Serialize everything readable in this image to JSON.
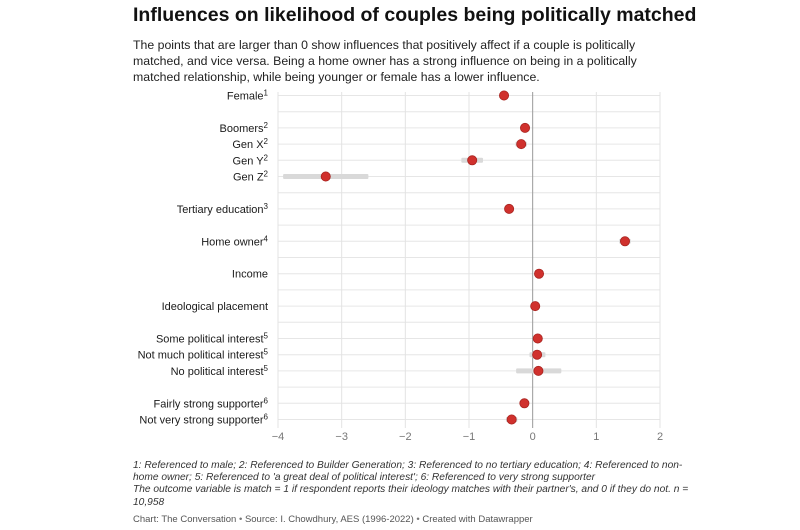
{
  "title": "Influences on likelihood of couples being politically matched",
  "subtitle": "The points that are larger than 0 show influences that positively affect if a couple is politically matched, and vice versa. Being a home owner has a strong influence on being in a politically matched relationship, while being younger or female has a lower influence.",
  "chart_data": {
    "type": "scatter",
    "orientation": "horizontal dot plot with confidence interval bars",
    "xlim": [
      -4,
      2
    ],
    "xticks": [
      -4,
      -3,
      -2,
      -1,
      0,
      1,
      2
    ],
    "xtick_labels": [
      "−4",
      "−3",
      "−2",
      "−1",
      "0",
      "1",
      "2"
    ],
    "grid": true,
    "point_color": "#d0312d",
    "ci_color": "#d9d9d9",
    "rows": [
      {
        "label": "Female",
        "sup": "1",
        "value": -0.45,
        "ci": [
          -0.52,
          -0.38
        ]
      },
      {
        "label": "",
        "sup": "",
        "value": null,
        "ci": null
      },
      {
        "label": "Boomers",
        "sup": "2",
        "value": -0.12,
        "ci": [
          -0.18,
          -0.06
        ]
      },
      {
        "label": "Gen X",
        "sup": "2",
        "value": -0.18,
        "ci": [
          -0.27,
          -0.09
        ]
      },
      {
        "label": "Gen Y",
        "sup": "2",
        "value": -0.95,
        "ci": [
          -1.12,
          -0.78
        ]
      },
      {
        "label": "Gen Z",
        "sup": "2",
        "value": -3.25,
        "ci": [
          -3.92,
          -2.58
        ]
      },
      {
        "label": "",
        "sup": "",
        "value": null,
        "ci": null
      },
      {
        "label": "Tertiary education",
        "sup": "3",
        "value": -0.37,
        "ci": [
          -0.44,
          -0.3
        ]
      },
      {
        "label": "",
        "sup": "",
        "value": null,
        "ci": null
      },
      {
        "label": "Home owner",
        "sup": "4",
        "value": 1.45,
        "ci": [
          1.36,
          1.54
        ]
      },
      {
        "label": "",
        "sup": "",
        "value": null,
        "ci": null
      },
      {
        "label": "Income",
        "sup": "",
        "value": 0.1,
        "ci": [
          0.08,
          0.12
        ]
      },
      {
        "label": "",
        "sup": "",
        "value": null,
        "ci": null
      },
      {
        "label": "Ideological placement",
        "sup": "",
        "value": 0.04,
        "ci": [
          0.02,
          0.06
        ]
      },
      {
        "label": "",
        "sup": "",
        "value": null,
        "ci": null
      },
      {
        "label": "Some political interest",
        "sup": "5",
        "value": 0.08,
        "ci": [
          0.02,
          0.14
        ]
      },
      {
        "label": "Not much political interest",
        "sup": "5",
        "value": 0.07,
        "ci": [
          -0.05,
          0.2
        ]
      },
      {
        "label": "No political interest",
        "sup": "5",
        "value": 0.09,
        "ci": [
          -0.26,
          0.45
        ]
      },
      {
        "label": "",
        "sup": "",
        "value": null,
        "ci": null
      },
      {
        "label": "Fairly strong supporter",
        "sup": "6",
        "value": -0.13,
        "ci": [
          -0.2,
          -0.06
        ]
      },
      {
        "label": "Not very strong supporter",
        "sup": "6",
        "value": -0.33,
        "ci": [
          -0.42,
          -0.24
        ]
      }
    ]
  },
  "notes": {
    "line1": "1: Referenced to male; 2: Referenced to Builder Generation; 3: Referenced to no tertiary education; 4: Referenced to non-home owner; 5: Referenced to 'a great deal of political interest'; 6: Referenced to very strong supporter",
    "line2": "The outcome variable is match = 1 if respondent reports their ideology matches with their partner's, and 0 if they do not. n = 10,958"
  },
  "credit": {
    "chart": "Chart: The Conversation",
    "source": "Source: I. Chowdhury, AES (1996-2022)",
    "tool": "Created with Datawrapper"
  }
}
